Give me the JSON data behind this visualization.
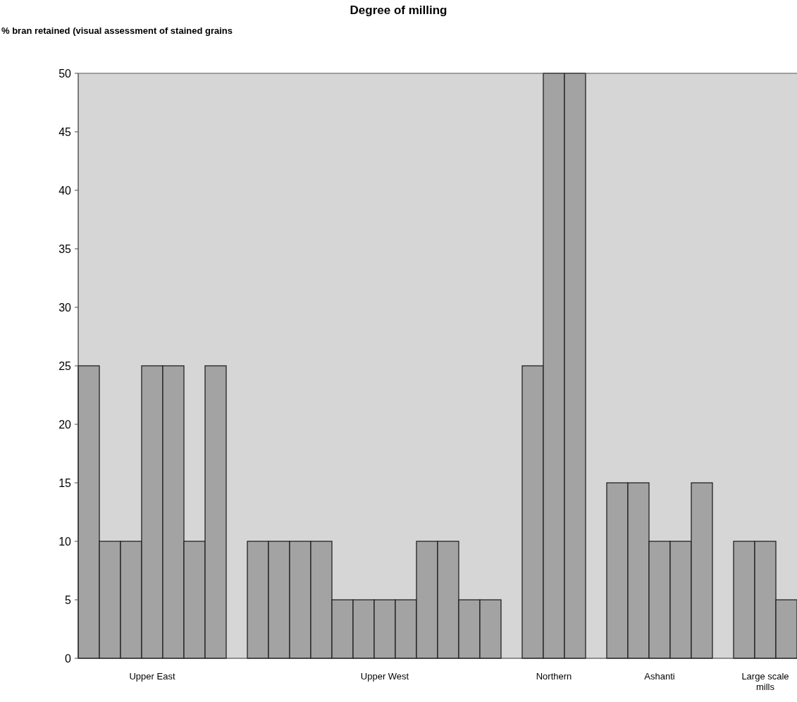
{
  "chart_data": {
    "type": "bar",
    "title": "Degree of milling",
    "ylabel": "% bran retained (visual assessment of stained grains",
    "categories": [
      null,
      null,
      null,
      "Upper East",
      null,
      null,
      null,
      null,
      null,
      null,
      null,
      null,
      null,
      null,
      "Upper West",
      null,
      null,
      null,
      null,
      null,
      null,
      null,
      "Northern",
      null,
      null,
      null,
      null,
      "Ashanti",
      null,
      null,
      null,
      null,
      "Large scale mills",
      null
    ],
    "values": [
      25,
      10,
      10,
      25,
      25,
      10,
      25,
      null,
      10,
      10,
      10,
      10,
      5,
      5,
      5,
      5,
      10,
      10,
      5,
      5,
      null,
      25,
      50,
      50,
      null,
      15,
      15,
      10,
      10,
      15,
      null,
      10,
      10,
      5
    ],
    "color": "#a3a3a3",
    "ylim": [
      0,
      50
    ],
    "yticks": [
      0,
      5,
      10,
      15,
      20,
      25,
      30,
      35,
      40,
      45,
      50
    ],
    "grid": false
  }
}
